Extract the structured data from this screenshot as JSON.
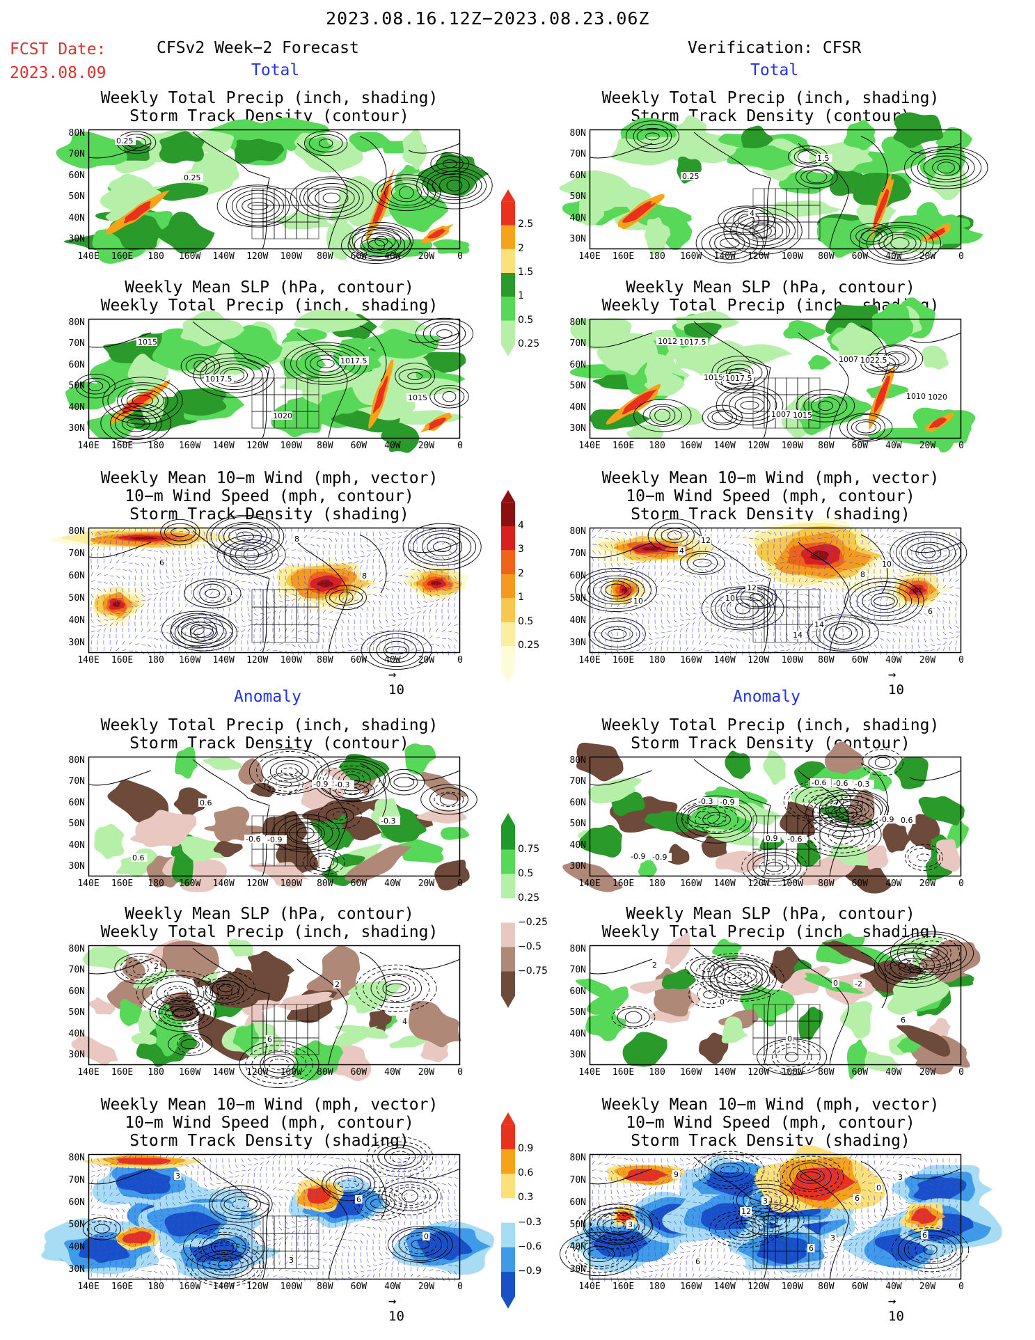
{
  "header": {
    "date_range": "2023.08.16.12Z−2023.08.23.06Z",
    "fcst_label": "FCST Date:",
    "fcst_date": "2023.08.09",
    "left_title": "CFSv2 Week−2 Forecast",
    "right_title": "Verification: CFSR"
  },
  "sections": {
    "total": "Total",
    "anomaly": "Anomaly"
  },
  "panel_titles": {
    "precip_storm": [
      "Weekly Total Precip (inch, shading)",
      "Storm Track Density (contour)"
    ],
    "slp_precip": [
      "Weekly Mean SLP (hPa, contour)",
      "Weekly Total Precip (inch, shading)"
    ],
    "wind_storm": [
      "Weekly Mean 10−m Wind (mph, vector)",
      "10−m Wind Speed (mph, contour)",
      "Storm Track Density (shading)"
    ]
  },
  "axes": {
    "lat_labels": [
      "80N",
      "70N",
      "60N",
      "50N",
      "40N",
      "30N"
    ],
    "lon_labels": [
      "140E",
      "160E",
      "180",
      "160W",
      "140W",
      "120W",
      "100W",
      "80W",
      "60W",
      "40W",
      "20W",
      "0"
    ]
  },
  "vector_ref": {
    "arrow": "→",
    "value": "10"
  },
  "colorbars": {
    "total_precip": {
      "labels": [
        "2.5",
        "2",
        "1.5",
        "1",
        "0.5",
        "0.25"
      ],
      "colors": [
        "#e8321e",
        "#f7a21b",
        "#fce07a",
        "#2a9a2a",
        "#58d858",
        "#b6f0a8"
      ]
    },
    "total_storm": {
      "labels": [
        "4",
        "3",
        "2",
        "1",
        "0.5",
        "0.25"
      ],
      "colors": [
        "#8c1010",
        "#d82020",
        "#f06418",
        "#f59a20",
        "#f6c850",
        "#fbeea0",
        "#fdfbd8"
      ]
    },
    "anom_precip": {
      "labels": [
        "0.75",
        "0.5",
        "0.25",
        "−0.25",
        "−0.5",
        "−0.75"
      ],
      "colors": [
        "#1f9a2a",
        "#58d858",
        "#b6f0a8",
        "#ffffff",
        "#e8c8c0",
        "#b08878",
        "#6e4a3a"
      ]
    },
    "anom_storm": {
      "labels": [
        "0.9",
        "0.6",
        "0.3",
        "−0.3",
        "−0.6",
        "−0.9"
      ],
      "colors": [
        "#e8321e",
        "#f7a21b",
        "#fce07a",
        "#ffffff",
        "#a8dcf4",
        "#3f9ae8",
        "#1850c8"
      ]
    }
  },
  "panels": [
    {
      "id": "fcst-total-precip-storm",
      "contour_labels": [
        "0.25",
        "0.25"
      ]
    },
    {
      "id": "fcst-total-slp-precip",
      "contour_labels": [
        "1015",
        "1017.5",
        "1020",
        "1017.5",
        "1015"
      ]
    },
    {
      "id": "fcst-total-wind-storm",
      "contour_labels": [
        "6",
        "6",
        "8",
        "8"
      ]
    },
    {
      "id": "cfsr-total-precip-storm",
      "contour_labels": [
        "0.25",
        "4",
        "1.5"
      ]
    },
    {
      "id": "cfsr-total-slp-precip",
      "contour_labels": [
        "1015",
        "1007.5",
        "1007.5",
        "1010",
        "1012.5",
        "1017.5",
        "1015",
        "1022.5",
        "1020",
        "1017.5"
      ]
    },
    {
      "id": "cfsr-total-wind-storm",
      "contour_labels": [
        "10",
        "14",
        "8",
        "6",
        "4",
        "12",
        "14",
        "10",
        "10",
        "12"
      ]
    },
    {
      "id": "fcst-anom-precip-storm",
      "contour_labels": [
        "-0.6",
        "-0.9",
        "-0.3",
        "0.6",
        "0.6",
        "-0.9",
        "-0.3"
      ]
    },
    {
      "id": "fcst-anom-slp-precip",
      "contour_labels": [
        "6",
        "2",
        "4",
        "2"
      ]
    },
    {
      "id": "fcst-anom-wind-storm",
      "contour_labels": [
        "3",
        "6",
        "0",
        "3"
      ]
    },
    {
      "id": "cfsr-anom-precip-storm",
      "contour_labels": [
        "-0.6",
        "-0.9",
        "-0.9",
        "-0.3",
        "0.9",
        "-0.6",
        "0.6",
        "-0.9",
        "-0.9",
        "-0.6",
        "-0.3"
      ]
    },
    {
      "id": "cfsr-anom-slp-precip",
      "contour_labels": [
        "0",
        "6",
        "2",
        "0",
        "0",
        "-2"
      ]
    },
    {
      "id": "cfsr-anom-wind-storm",
      "contour_labels": [
        "6",
        "6",
        "9",
        "12",
        "6",
        "0",
        "3",
        "6",
        "3",
        "3",
        "3"
      ]
    }
  ]
}
